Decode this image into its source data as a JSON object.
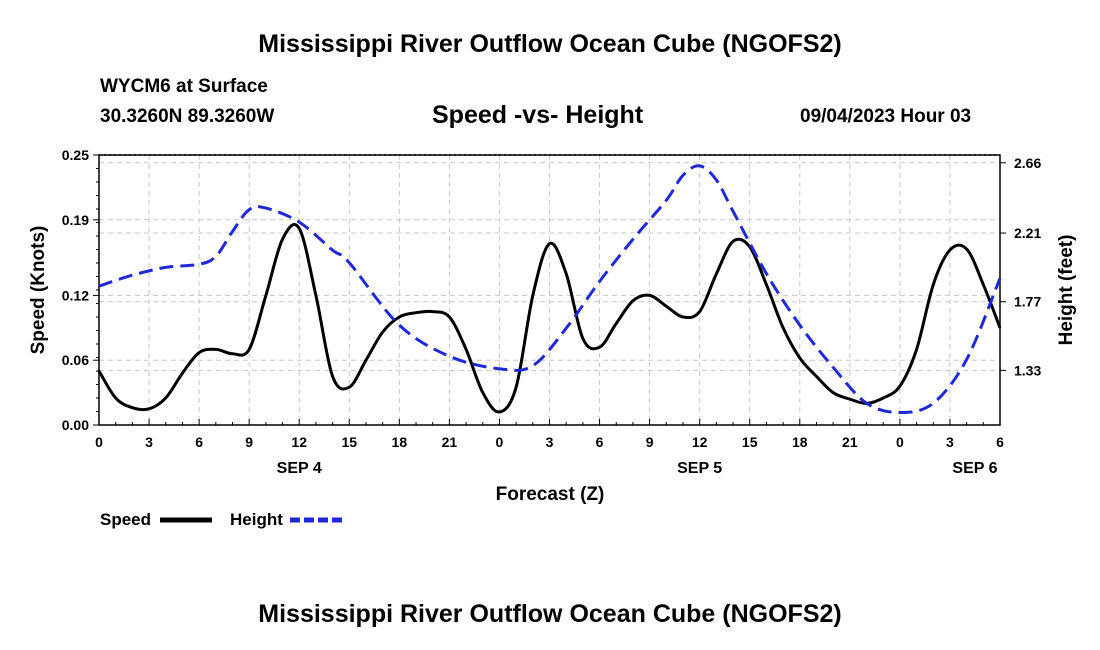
{
  "page": {
    "title": "Mississippi River Outflow Ocean Cube (NGOFS2)",
    "footer_title": "Mississippi River Outflow Ocean Cube (NGOFS2)",
    "station": "WYCM6 at Surface",
    "coords": "30.3260N  89.3260W",
    "subtitle": "Speed -vs- Height",
    "datetime": "09/04/2023 Hour 03"
  },
  "colors": {
    "speed": "#000000",
    "height": "#1f2ad6",
    "grid": "#c8c8c8"
  },
  "chart_data": {
    "type": "line",
    "title": "Speed -vs- Height",
    "xlabel": "Forecast (Z)",
    "ylabel": "Speed (Knots)",
    "y2label": "Height (feet)",
    "x_range": [
      0,
      54
    ],
    "ylim": [
      0,
      0.25
    ],
    "y2lim": [
      0.98,
      2.71
    ],
    "y_ticks": [
      0,
      0.06,
      0.12,
      0.19,
      0.25
    ],
    "y_tick_labels": [
      "0.00",
      "0.06",
      "0.12",
      "0.19",
      "0.25"
    ],
    "y2_ticks": [
      1.33,
      1.77,
      2.21,
      2.66
    ],
    "y2_tick_labels": [
      "1.33",
      "1.77",
      "2.21",
      "2.66"
    ],
    "x_ticks": [
      0,
      3,
      6,
      9,
      12,
      15,
      18,
      21,
      24,
      27,
      30,
      33,
      36,
      39,
      42,
      45,
      48,
      51,
      54
    ],
    "x_tick_labels": [
      "0",
      "3",
      "6",
      "9",
      "12",
      "15",
      "18",
      "21",
      "0",
      "3",
      "6",
      "9",
      "12",
      "15",
      "18",
      "21",
      "0",
      "3",
      "6"
    ],
    "day_labels": [
      {
        "x": 12,
        "label": "SEP 4"
      },
      {
        "x": 36,
        "label": "SEP 5"
      },
      {
        "x": 52.5,
        "label": "SEP 6"
      }
    ],
    "legend": [
      {
        "name": "Speed",
        "style": "solid"
      },
      {
        "name": "Height",
        "style": "dashed"
      }
    ],
    "series": [
      {
        "name": "Speed",
        "axis": "left",
        "style": "solid",
        "x": [
          0,
          1,
          2,
          3,
          4,
          5,
          6,
          7,
          8,
          9,
          10,
          11,
          12,
          13,
          14,
          15,
          16,
          17,
          18,
          19,
          20,
          21,
          22,
          23,
          24,
          25,
          26,
          27,
          28,
          29,
          30,
          31,
          32,
          33,
          34,
          35,
          36,
          37,
          38,
          39,
          40,
          41,
          42,
          43,
          44,
          45,
          46,
          47,
          48,
          49,
          50,
          51,
          52,
          53,
          54
        ],
        "values": [
          0.05,
          0.025,
          0.016,
          0.015,
          0.025,
          0.048,
          0.067,
          0.07,
          0.066,
          0.07,
          0.12,
          0.172,
          0.182,
          0.12,
          0.045,
          0.035,
          0.06,
          0.086,
          0.1,
          0.104,
          0.105,
          0.1,
          0.07,
          0.03,
          0.012,
          0.035,
          0.12,
          0.168,
          0.14,
          0.08,
          0.072,
          0.094,
          0.115,
          0.12,
          0.11,
          0.1,
          0.105,
          0.14,
          0.17,
          0.165,
          0.13,
          0.09,
          0.062,
          0.045,
          0.03,
          0.024,
          0.02,
          0.025,
          0.036,
          0.07,
          0.13,
          0.162,
          0.163,
          0.13,
          0.09
        ]
      },
      {
        "name": "Height",
        "axis": "right",
        "style": "dashed",
        "x": [
          0,
          2,
          4,
          6,
          7,
          8,
          9,
          10,
          12,
          14,
          15,
          18,
          21,
          24,
          26,
          28,
          30,
          32,
          34,
          35,
          36,
          37,
          38,
          40,
          42,
          44,
          46,
          48,
          50,
          52,
          54
        ],
        "values": [
          1.87,
          1.94,
          1.99,
          2.01,
          2.06,
          2.22,
          2.36,
          2.37,
          2.28,
          2.1,
          2.02,
          1.62,
          1.42,
          1.34,
          1.36,
          1.6,
          1.9,
          2.17,
          2.42,
          2.58,
          2.64,
          2.55,
          2.35,
          1.95,
          1.62,
          1.35,
          1.12,
          1.06,
          1.12,
          1.4,
          1.92
        ]
      }
    ]
  }
}
